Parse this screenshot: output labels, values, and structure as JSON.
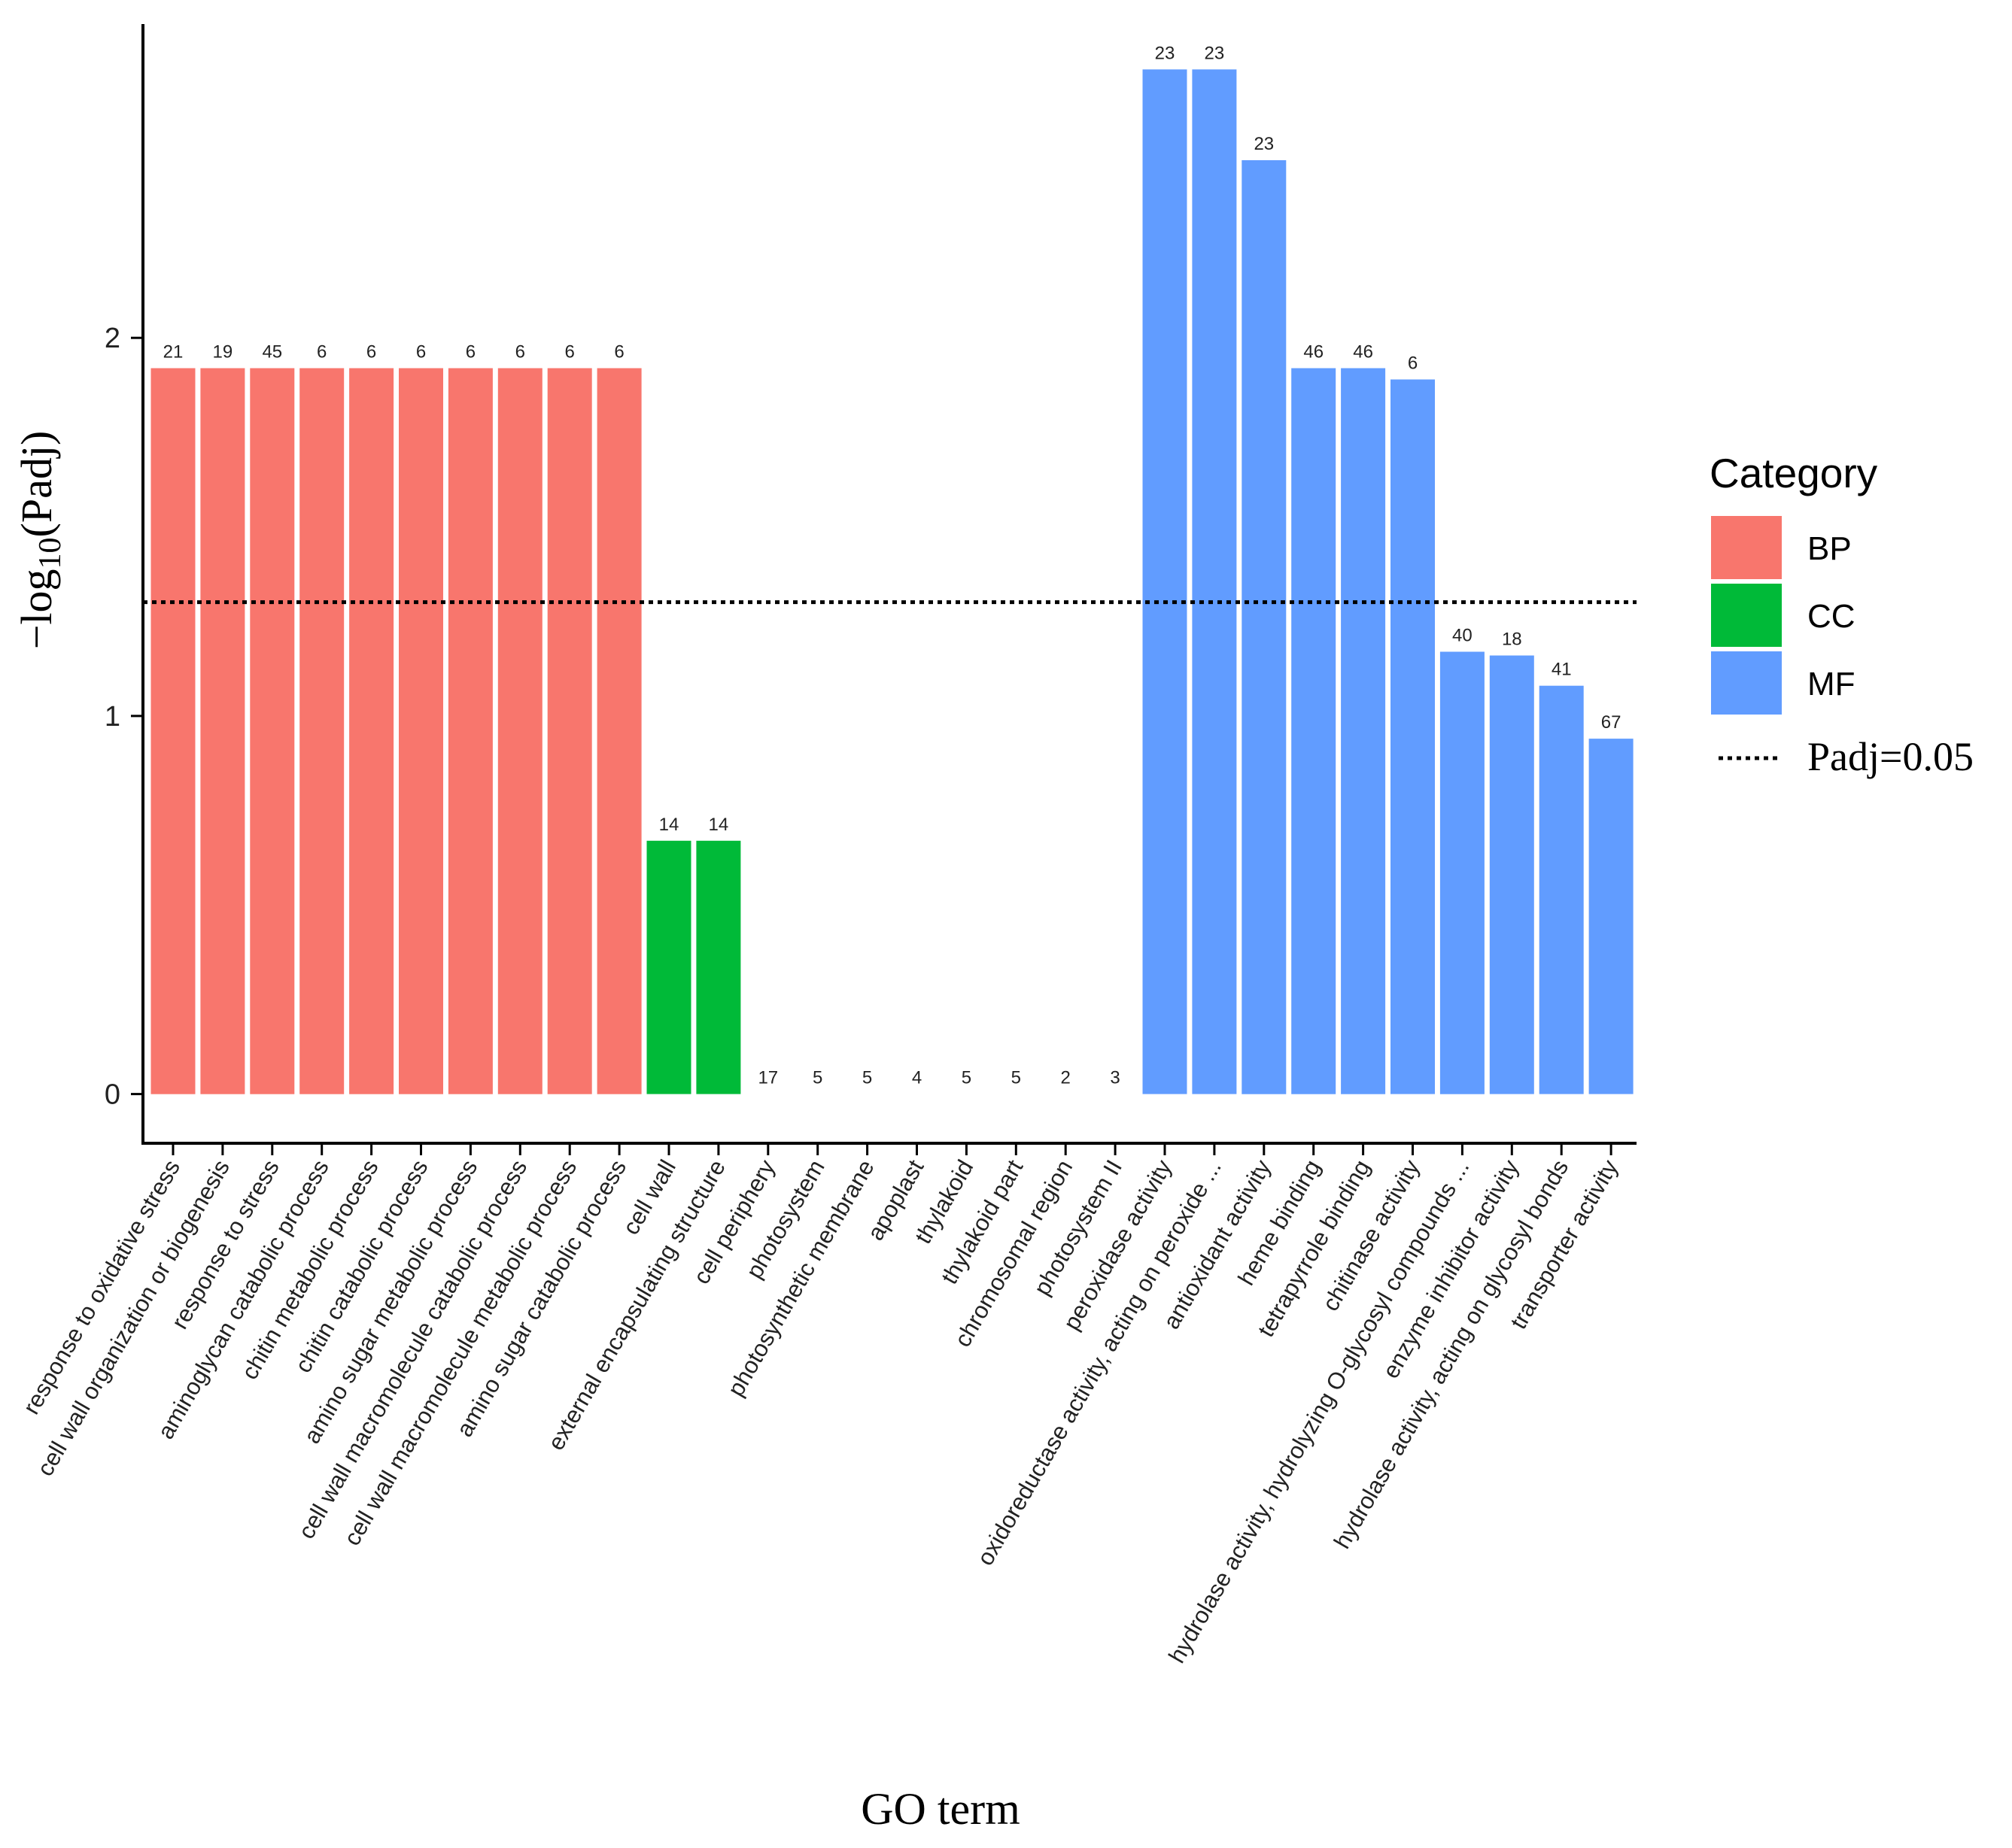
{
  "chart_data": {
    "type": "bar",
    "title": "",
    "xlabel": "GO term",
    "ylabel_prefix": "−log",
    "ylabel_sub": "10",
    "ylabel_suffix": "(Padj)",
    "ylim": [
      -0.13,
      2.83
    ],
    "yticks": [
      0,
      1,
      2
    ],
    "threshold": {
      "value": 1.301,
      "label": "Padj=0.05"
    },
    "legend": {
      "title": "Category",
      "position": "right",
      "items": [
        {
          "key": "BP",
          "label": "BP",
          "color": "#F8766D"
        },
        {
          "key": "CC",
          "label": "CC",
          "color": "#00BA38"
        },
        {
          "key": "MF",
          "label": "MF",
          "color": "#619CFF"
        }
      ]
    },
    "categories": [
      "response to oxidative stress",
      "cell wall organization or biogenesis",
      "response to stress",
      "aminoglycan catabolic process",
      "chitin metabolic process",
      "chitin catabolic process",
      "amino sugar metabolic process",
      "cell wall macromolecule catabolic process",
      "cell wall macromolecule metabolic process",
      "amino sugar catabolic process",
      "cell wall",
      "external encapsulating structure",
      "cell periphery",
      "photosystem",
      "photosynthetic membrane",
      "apoplast",
      "thylakoid",
      "thylakoid part",
      "chromosomal region",
      "photosystem II",
      "peroxidase activity",
      "oxidoreductase activity, acting on peroxide ...",
      "antioxidant activity",
      "heme binding",
      "tetrapyrrole binding",
      "chitinase activity",
      "hydrolase activity, hydrolyzing O-glycosyl compounds ...",
      "enzyme inhibitor activity",
      "hydrolase activity, acting on glycosyl bonds",
      "transporter activity"
    ],
    "group": [
      "BP",
      "BP",
      "BP",
      "BP",
      "BP",
      "BP",
      "BP",
      "BP",
      "BP",
      "BP",
      "CC",
      "CC",
      "CC",
      "CC",
      "CC",
      "CC",
      "CC",
      "CC",
      "CC",
      "CC",
      "MF",
      "MF",
      "MF",
      "MF",
      "MF",
      "MF",
      "MF",
      "MF",
      "MF",
      "MF"
    ],
    "values": [
      1.92,
      1.92,
      1.92,
      1.92,
      1.92,
      1.92,
      1.92,
      1.92,
      1.92,
      1.92,
      0.67,
      0.67,
      0,
      0,
      0,
      0,
      0,
      0,
      0,
      0,
      2.71,
      2.71,
      2.47,
      1.92,
      1.92,
      1.89,
      1.17,
      1.16,
      1.08,
      0.94
    ],
    "counts": [
      "21",
      "19",
      "45",
      "6",
      "6",
      "6",
      "6",
      "6",
      "6",
      "6",
      "14",
      "14",
      "17",
      "5",
      "5",
      "4",
      "5",
      "5",
      "2",
      "3",
      "23",
      "23",
      "23",
      "46",
      "46",
      "6",
      "40",
      "18",
      "41",
      "67"
    ]
  }
}
